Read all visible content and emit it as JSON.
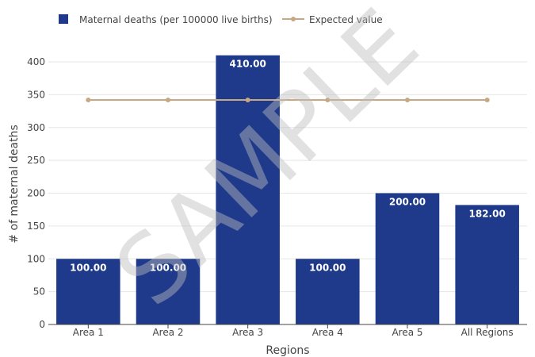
{
  "chart_data": {
    "type": "bar",
    "categories": [
      "Area 1",
      "Area 2",
      "Area 3",
      "Area 4",
      "Area 5",
      "All Regions"
    ],
    "series": [
      {
        "name": "Maternal deaths (per 100000 live births)",
        "type": "bar",
        "values": [
          100,
          100,
          410,
          100,
          200,
          182
        ],
        "labels": [
          "100.00",
          "100.00",
          "410.00",
          "100.00",
          "200.00",
          "182.00"
        ],
        "color": "#1f3a8a"
      },
      {
        "name": "Expected value",
        "type": "line",
        "values": [
          342,
          342,
          342,
          342,
          342,
          342
        ],
        "color": "#c8a882"
      }
    ],
    "xlabel": "Regions",
    "ylabel": "# of maternal deaths",
    "ylim": [
      0,
      400
    ],
    "yticks": [
      0,
      50,
      100,
      150,
      200,
      250,
      300,
      350,
      400
    ],
    "grid": true,
    "legend_position": "top-left"
  },
  "watermark": "SAMPLE"
}
